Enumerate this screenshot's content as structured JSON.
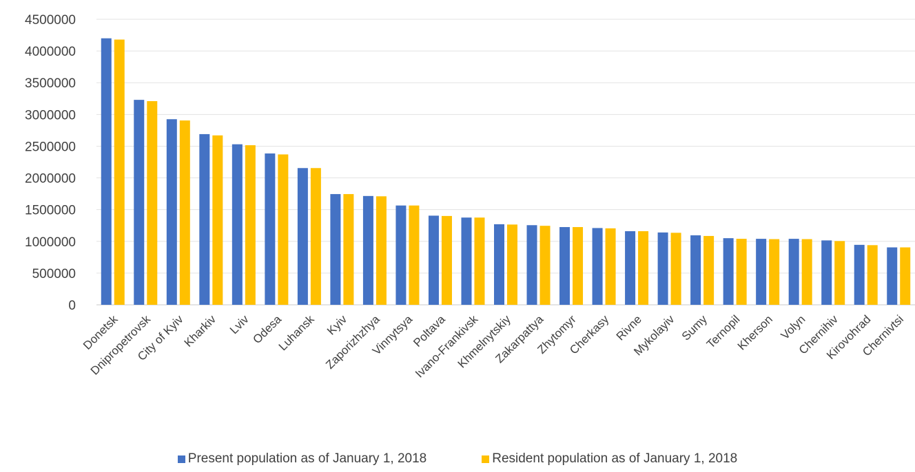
{
  "colors": {
    "present": "#4472c4",
    "resident": "#ffc000"
  },
  "chart_data": {
    "type": "bar",
    "title": "",
    "xlabel": "",
    "ylabel": "",
    "ylim": [
      0,
      4500000
    ],
    "yticks": [
      "0",
      "500000",
      "1000000",
      "1500000",
      "2000000",
      "2500000",
      "3000000",
      "3500000",
      "4000000",
      "4500000"
    ],
    "grid": true,
    "legend_position": "bottom",
    "categories": [
      "Donetsk",
      "Dnipropetrovsk",
      "City of Kyiv",
      "Kharkiv",
      "Lviv",
      "Odesa",
      "Luhansk",
      "Kyiv",
      "Zaporizhzhya",
      "Vinnytsya",
      "Poltava",
      "Ivano-Frankivsk",
      "Khmelnytskiy",
      "Zakarpattya",
      "Zhytomyr",
      "Cherkasy",
      "Rivne",
      "Mykolayiv",
      "Sumy",
      "Ternopil",
      "Kherson",
      "Volyn",
      "Chernihiv",
      "Kirovohrad",
      "Chernivtsi"
    ],
    "series": [
      {
        "name": "Present population as of January 1, 2018",
        "values": [
          4200000,
          3230000,
          2925000,
          2690000,
          2530000,
          2385000,
          2155000,
          1745000,
          1715000,
          1565000,
          1405000,
          1375000,
          1270000,
          1255000,
          1225000,
          1210000,
          1160000,
          1140000,
          1095000,
          1050000,
          1040000,
          1040000,
          1015000,
          945000,
          905000
        ]
      },
      {
        "name": "Resident population as of January 1, 2018",
        "values": [
          4180000,
          3210000,
          2905000,
          2670000,
          2515000,
          2370000,
          2155000,
          1745000,
          1710000,
          1565000,
          1400000,
          1375000,
          1265000,
          1245000,
          1225000,
          1205000,
          1160000,
          1135000,
          1085000,
          1040000,
          1035000,
          1035000,
          1005000,
          940000,
          905000
        ]
      }
    ]
  }
}
